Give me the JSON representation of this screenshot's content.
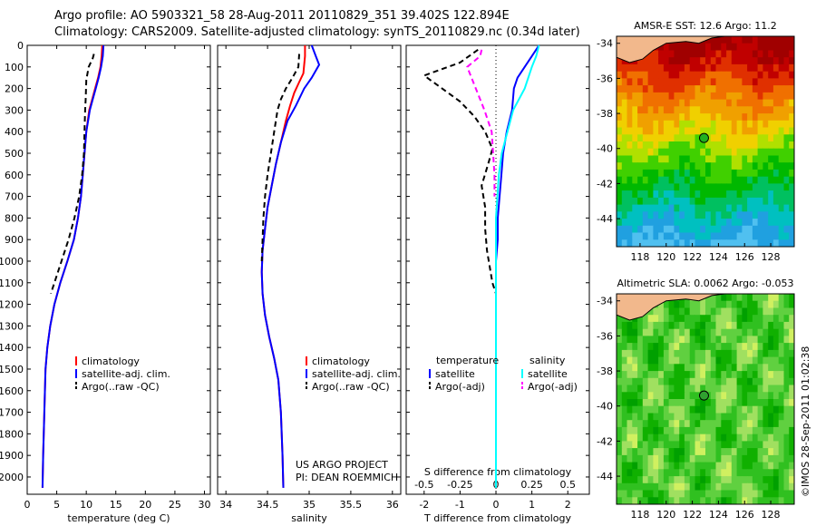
{
  "header": {
    "line1": "Argo profile: AO 5903321_58 28-Aug-2011 20110829_351 39.402S 122.894E",
    "line2": "Climatology: CARS2009. Satellite-adjusted climatology: synTS_20110829.nc (0.34d later)"
  },
  "chart_data": [
    {
      "type": "line",
      "name": "temperature-profile",
      "xlabel": "temperature (deg C)",
      "ylabel": "",
      "xlim": [
        0,
        31
      ],
      "ylim": [
        2080,
        0
      ],
      "xticks": [
        0,
        5,
        10,
        15,
        20,
        25,
        30
      ],
      "yticks": [
        0,
        100,
        200,
        300,
        400,
        500,
        600,
        700,
        800,
        900,
        1000,
        1100,
        1200,
        1300,
        1400,
        1500,
        1600,
        1700,
        1800,
        1900,
        2000
      ],
      "legend_position": "lower-center",
      "series": [
        {
          "name": "climatology",
          "color": "#ff0000",
          "dash": "solid",
          "x": [
            12.7,
            12.6,
            12.4,
            12.0,
            11.5,
            11.0,
            10.5,
            10.0,
            9.7,
            9.4,
            9.1,
            8.6,
            7.9,
            6.8,
            5.6,
            4.6,
            3.9,
            3.4,
            3.1,
            2.9,
            2.7,
            2.6
          ],
          "y": [
            0,
            50,
            100,
            150,
            200,
            250,
            300,
            400,
            500,
            600,
            700,
            800,
            900,
            1000,
            1100,
            1200,
            1300,
            1400,
            1500,
            1700,
            1900,
            2050
          ]
        },
        {
          "name": "satellite-adj. clim.",
          "color": "#0000ff",
          "dash": "solid",
          "x": [
            12.9,
            12.8,
            12.5,
            12.1,
            11.6,
            11.1,
            10.6,
            10.0,
            9.7,
            9.4,
            9.1,
            8.6,
            7.9,
            6.8,
            5.6,
            4.6,
            3.9,
            3.4,
            3.1,
            2.9,
            2.7,
            2.6
          ],
          "y": [
            0,
            50,
            100,
            150,
            200,
            250,
            300,
            400,
            500,
            600,
            700,
            800,
            900,
            1000,
            1100,
            1200,
            1300,
            1400,
            1500,
            1700,
            1900,
            2050
          ]
        },
        {
          "name": "Argo(..raw -QC)",
          "color": "#000000",
          "dash": "dashed",
          "x": [
            11.3,
            11.1,
            10.4,
            10.0,
            9.9,
            9.8,
            9.7,
            9.6,
            9.3,
            8.8,
            8.0,
            7.0,
            5.8,
            4.6,
            4.0
          ],
          "y": [
            40,
            60,
            100,
            160,
            250,
            300,
            400,
            500,
            600,
            700,
            800,
            900,
            1000,
            1100,
            1150
          ]
        }
      ]
    },
    {
      "type": "line",
      "name": "salinity-profile",
      "xlabel": "salinity",
      "ylabel": "",
      "xlim": [
        33.9,
        36.1
      ],
      "ylim": [
        2080,
        0
      ],
      "xticks": [
        34,
        34.5,
        35,
        35.5,
        36
      ],
      "legend_position": "lower-center",
      "series": [
        {
          "name": "climatology",
          "color": "#ff0000",
          "dash": "solid",
          "x": [
            34.95,
            34.95,
            34.93,
            34.88,
            34.82,
            34.77,
            34.72,
            34.66,
            34.6,
            34.55,
            34.5,
            34.47,
            34.44,
            34.43,
            34.44,
            34.47,
            34.52,
            34.58,
            34.63,
            34.66,
            34.68,
            34.69
          ],
          "y": [
            0,
            50,
            130,
            170,
            220,
            280,
            350,
            450,
            550,
            650,
            750,
            850,
            950,
            1050,
            1150,
            1250,
            1350,
            1450,
            1550,
            1700,
            1900,
            2050
          ]
        },
        {
          "name": "satellite-adj. clim.",
          "color": "#0000ff",
          "dash": "solid",
          "x": [
            35.03,
            35.08,
            35.12,
            35.03,
            34.94,
            34.84,
            34.74,
            34.66,
            34.6,
            34.55,
            34.5,
            34.47,
            34.44,
            34.43,
            34.44,
            34.47,
            34.52,
            34.58,
            34.63,
            34.66,
            34.68,
            34.69
          ],
          "y": [
            0,
            50,
            90,
            150,
            200,
            280,
            350,
            450,
            550,
            650,
            750,
            850,
            950,
            1050,
            1150,
            1250,
            1350,
            1450,
            1550,
            1700,
            1900,
            2050
          ]
        },
        {
          "name": "Argo(..raw -QC)",
          "color": "#000000",
          "dash": "dashed",
          "x": [
            34.88,
            34.87,
            34.8,
            34.72,
            34.66,
            34.62,
            34.58,
            34.54,
            34.5,
            34.47,
            34.45,
            34.44,
            34.43
          ],
          "y": [
            40,
            100,
            150,
            200,
            250,
            300,
            400,
            500,
            600,
            700,
            800,
            900,
            1000
          ]
        }
      ],
      "annotations": [
        "US ARGO PROJECT",
        "PI: DEAN ROEMMICH"
      ]
    },
    {
      "type": "line",
      "name": "difference-profile",
      "xlabel": "T difference from climatology",
      "xlabel_top": "S difference from climatology",
      "xlim": [
        -2.5,
        2.6
      ],
      "xticks_T": [
        -2,
        -1,
        0,
        1,
        2
      ],
      "xticks_S": [
        -0.5,
        -0.25,
        0,
        0.25,
        0.5
      ],
      "legend_position": "lower-center",
      "series": [
        {
          "name": "temperature satellite",
          "color": "#0000ff",
          "dash": "solid",
          "axis": "T",
          "x": [
            1.2,
            1.0,
            0.8,
            0.6,
            0.5,
            0.45,
            0.3,
            0.2,
            0.15,
            0.1,
            0.05,
            0.05,
            0.0,
            0.0
          ],
          "y": [
            0,
            50,
            100,
            150,
            200,
            300,
            400,
            500,
            600,
            700,
            800,
            900,
            1000,
            1100
          ]
        },
        {
          "name": "temperature Argo(-adj)",
          "color": "#000000",
          "dash": "dashed",
          "axis": "T",
          "x": [
            -0.5,
            -1.0,
            -2.0,
            -1.5,
            -1.0,
            -0.6,
            -0.3,
            -0.1,
            -0.2,
            -0.4,
            -0.3,
            -0.3,
            -0.25,
            -0.2,
            -0.1,
            0.0
          ],
          "y": [
            20,
            80,
            140,
            200,
            260,
            330,
            400,
            480,
            540,
            650,
            750,
            850,
            950,
            1000,
            1100,
            1150
          ]
        },
        {
          "name": "salinity satellite",
          "color": "#00ffff",
          "dash": "solid",
          "axis": "S",
          "x": [
            0.3,
            0.28,
            0.25,
            0.2,
            0.12,
            0.08,
            0.04,
            0.02,
            0.01,
            0.0,
            0.0,
            0.0,
            0.0,
            0.0,
            0.0
          ],
          "y": [
            0,
            50,
            100,
            200,
            300,
            400,
            500,
            600,
            700,
            800,
            1000,
            1200,
            1500,
            1800,
            2050
          ]
        },
        {
          "name": "salinity Argo(-adj)",
          "color": "#ff00ff",
          "dash": "dashed",
          "axis": "S",
          "x": [
            -0.1,
            -0.11,
            -0.2,
            -0.14,
            -0.08,
            -0.03,
            -0.02,
            -0.01,
            -0.01
          ],
          "y": [
            20,
            50,
            100,
            200,
            300,
            400,
            500,
            600,
            700
          ]
        }
      ],
      "legend": {
        "temperature_title": "temperature",
        "salinity_title": "salinity",
        "temperature_items": [
          "satellite",
          "Argo(-adj)"
        ],
        "salinity_items": [
          "satellite",
          "Argo(-adj)"
        ]
      }
    },
    {
      "type": "heatmap",
      "name": "sst-map",
      "title": "AMSR-E SST: 12.6 Argo: 11.2",
      "xticks": [
        118,
        120,
        122,
        124,
        126,
        128
      ],
      "yticks": [
        -34,
        -36,
        -38,
        -40,
        -42,
        -44
      ],
      "xlim": [
        116.2,
        129.8
      ],
      "ylim": [
        -45.6,
        -33.6
      ],
      "marker": {
        "lon": 122.894,
        "lat": -39.402
      }
    },
    {
      "type": "heatmap",
      "name": "sla-map",
      "title": "Altimetric SLA: 0.0062 Argo: -0.053",
      "xticks": [
        118,
        120,
        122,
        124,
        126,
        128
      ],
      "yticks": [
        -34,
        -36,
        -38,
        -40,
        -42,
        -44
      ],
      "xlim": [
        116.2,
        129.8
      ],
      "ylim": [
        -45.6,
        -33.6
      ],
      "marker": {
        "lon": 122.894,
        "lat": -39.402
      }
    }
  ],
  "stamp": "©IMOS 28-Sep-2011 01:02:38",
  "colors": {
    "land": "#f2b88c",
    "red": "#ff0000",
    "blue": "#0000ff",
    "cyan": "#00ffff",
    "magenta": "#ff00ff"
  }
}
